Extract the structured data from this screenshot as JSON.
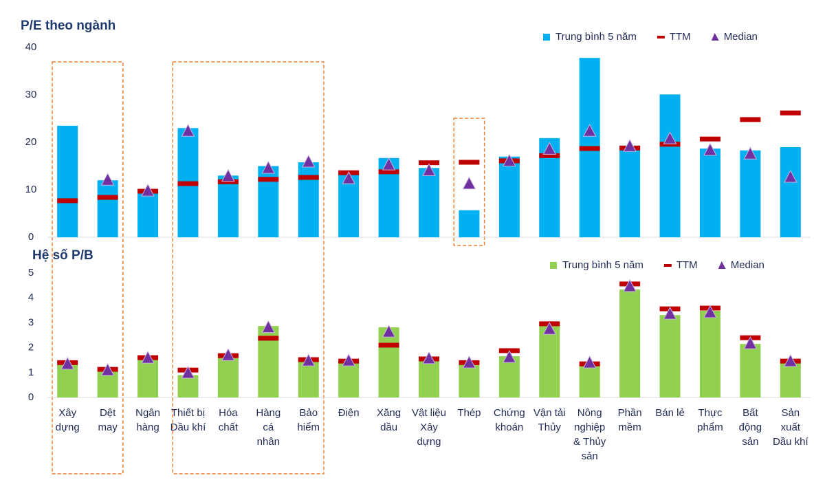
{
  "chart_data": [
    {
      "type": "bar",
      "title": "P/E theo ngành",
      "ylim": [
        0,
        40
      ],
      "yticks": [
        0,
        10,
        20,
        30,
        40
      ],
      "series": [
        {
          "name": "Trung bình 5 năm",
          "marker": "bar",
          "color": "#00b0f0",
          "values": [
            23.5,
            12,
            10,
            23,
            13,
            15,
            15.8,
            13.3,
            16.7,
            14.6,
            5.7,
            17,
            20.9,
            37.8,
            19.3,
            30.1,
            18.7,
            18.3,
            19
          ]
        },
        {
          "name": "TTM",
          "marker": "dash",
          "color": "#c00000",
          "values": [
            7.7,
            8.4,
            9.7,
            11.3,
            11.7,
            12.2,
            12.6,
            13.6,
            13.8,
            15.7,
            15.8,
            16.1,
            17.2,
            18.7,
            18.8,
            19.6,
            20.7,
            24.8,
            26.2
          ]
        },
        {
          "name": "Median",
          "marker": "triangle",
          "color": "#7030a0",
          "values": [
            null,
            12,
            9.7,
            22.3,
            12.8,
            14.5,
            15.8,
            12.3,
            15.2,
            14,
            11.2,
            16,
            18.5,
            22.3,
            19.1,
            20.7,
            18.3,
            17.5,
            12.6
          ]
        }
      ]
    },
    {
      "type": "bar",
      "title": "Hệ số P/B",
      "ylim": [
        0,
        5
      ],
      "yticks": [
        0,
        1,
        2,
        3,
        4,
        5
      ],
      "categories": [
        "Xây\ndựng",
        "Dệt\nmay",
        "Ngân\nhàng",
        "Thiết bị\nDầu khí",
        "Hóa\nchất",
        "Hàng\ncá\nnhân",
        "Bảo\nhiểm",
        "Điện",
        "Xăng\ndầu",
        "Vật liệu\nXây\ndựng",
        "Thép",
        "Chứng\nkhoán",
        "Vận tải\nThủy",
        "Nông\nnghiệp\n& Thủy\nsản",
        "Phần\nmềm",
        "Bán lẻ",
        "Thực\nphẩm",
        "Bất\nđộng\nsản",
        "Sản\nxuất\nDầu khí"
      ],
      "series": [
        {
          "name": "Trung bình 5 năm",
          "marker": "bar",
          "color": "#92d050",
          "values": [
            1.33,
            1.08,
            1.68,
            0.9,
            1.77,
            2.87,
            1.57,
            1.44,
            2.82,
            1.55,
            1.38,
            1.66,
            2.98,
            1.33,
            4.34,
            3.31,
            3.48,
            2.15,
            1.41
          ]
        },
        {
          "name": "TTM",
          "marker": "dash",
          "color": "#c00000",
          "values": [
            1.4,
            1.13,
            1.6,
            1.1,
            1.68,
            2.38,
            1.52,
            1.46,
            2.1,
            1.55,
            1.4,
            1.88,
            2.96,
            1.35,
            4.56,
            3.56,
            3.59,
            2.4,
            1.46
          ]
        },
        {
          "name": "Median",
          "marker": "triangle",
          "color": "#7030a0",
          "values": [
            1.33,
            1.08,
            1.57,
            0.97,
            1.68,
            2.8,
            1.46,
            1.46,
            2.62,
            1.55,
            1.38,
            1.6,
            2.73,
            1.38,
            4.45,
            3.34,
            3.4,
            2.15,
            1.44
          ]
        }
      ]
    }
  ]
}
